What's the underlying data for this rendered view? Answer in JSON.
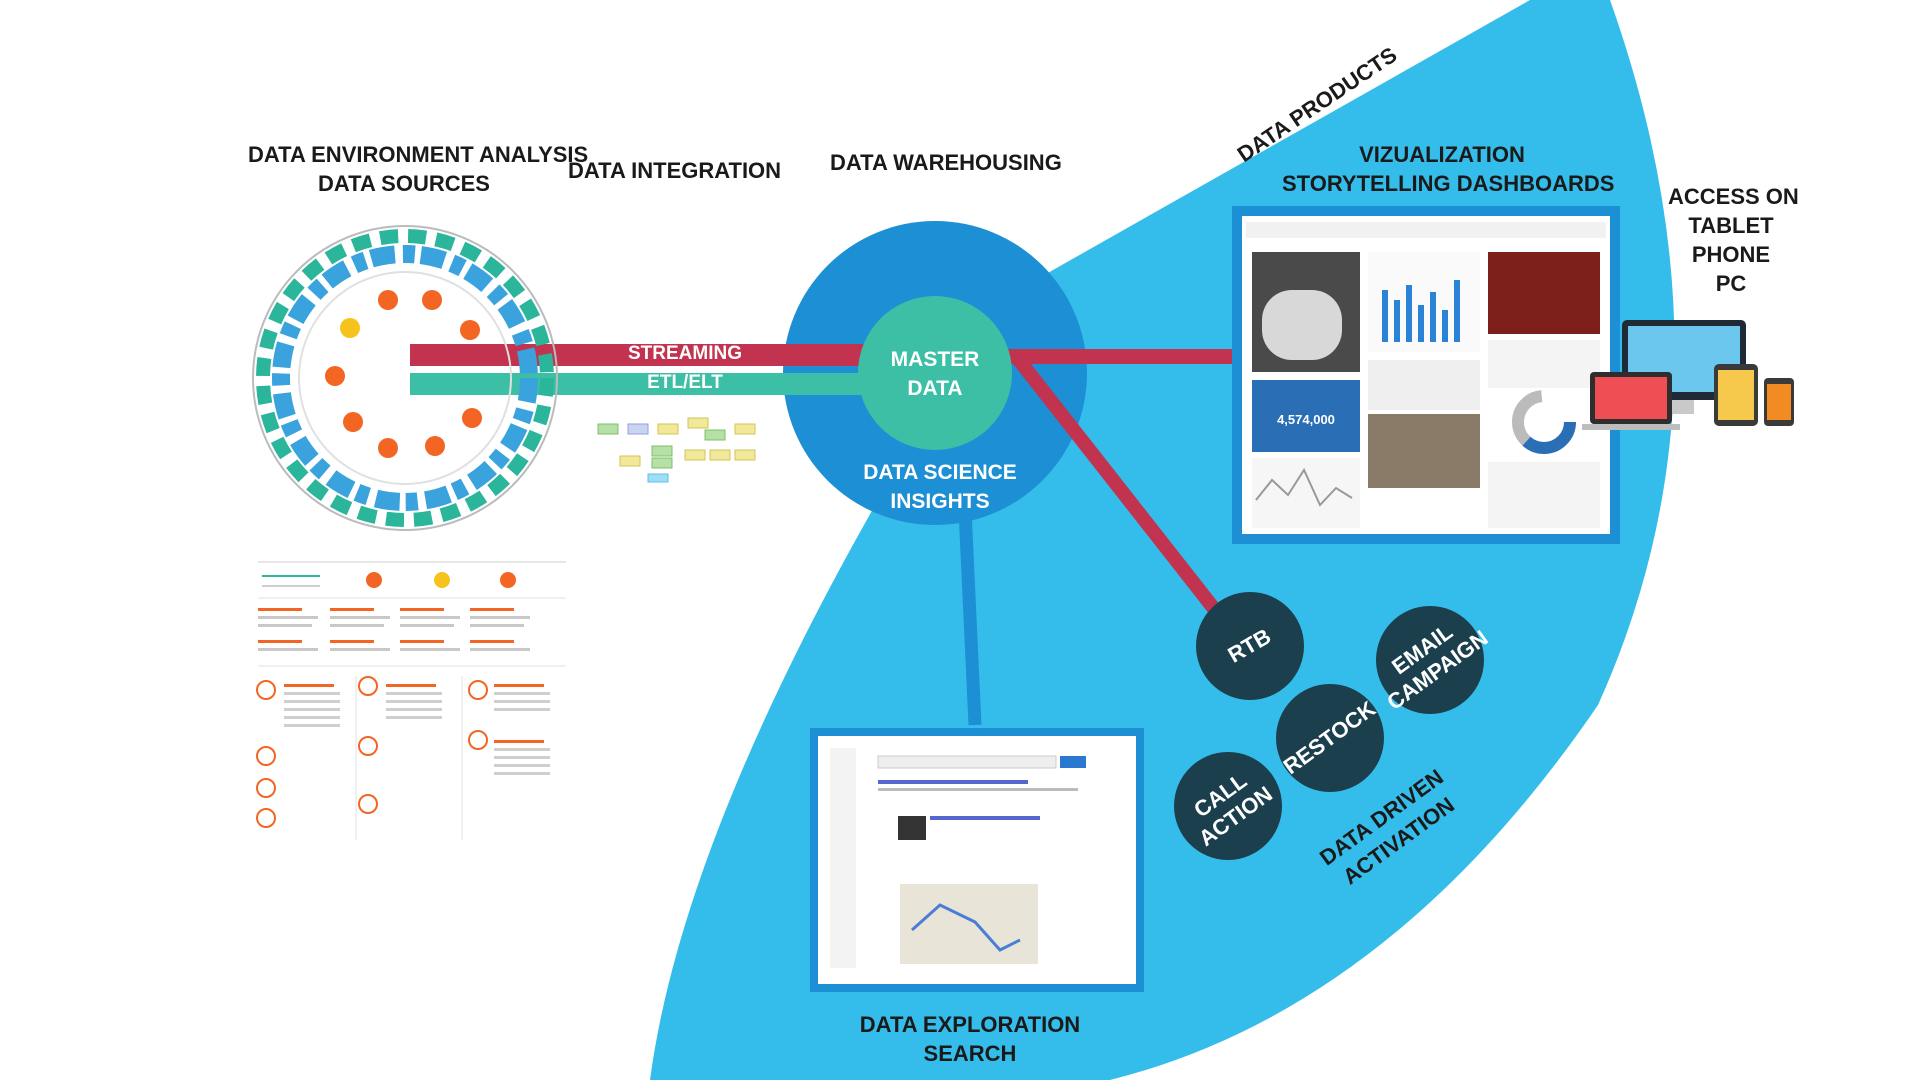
{
  "labels": {
    "data_environment": [
      "DATA ENVIRONMENT ANALYSIS",
      "DATA SOURCES"
    ],
    "data_integration": "DATA INTEGRATION",
    "data_warehousing": "DATA WAREHOUSING",
    "data_products": "DATA PRODUCTS",
    "visualization": [
      "VIZUALIZATION",
      "STORYTELLING DASHBOARDS"
    ],
    "access": [
      "ACCESS ON",
      "TABLET",
      "PHONE",
      "PC"
    ],
    "streaming": "STREAMING",
    "etl": "ETL/ELT",
    "master_data": [
      "MASTER",
      "DATA"
    ],
    "data_science": [
      "DATA SCIENCE",
      "INSIGHTS"
    ],
    "data_exploration": [
      "DATA EXPLORATION",
      "SEARCH"
    ],
    "data_driven": [
      "DATA DRIVEN",
      "ACTIVATION"
    ]
  },
  "activation": {
    "rtb": "RTB",
    "email": [
      "EMAIL",
      "CAMPAIGN"
    ],
    "restock": "RESTOCK",
    "call": [
      "CALL",
      "ACTION"
    ]
  },
  "dashboard": {
    "big_number": "4,574,000"
  },
  "colors": {
    "fan": "#34bdea",
    "hub": "#1d8fd4",
    "master": "#3dbfa6",
    "streaming": "#c2334f",
    "etl": "#3dbfa6",
    "activation_circle": "#1b3f4c",
    "ring_teal": "#2bb59a",
    "ring_blue": "#3aa3dd",
    "orange": "#f26522",
    "yellow": "#f6c31c"
  }
}
